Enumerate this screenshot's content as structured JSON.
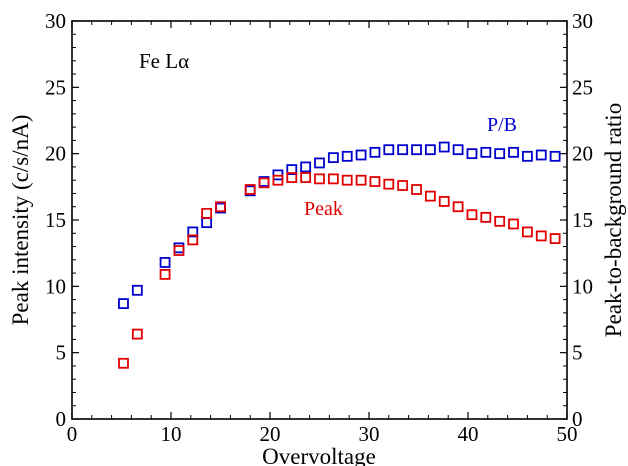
{
  "chart_data": {
    "type": "scatter",
    "annotation": "Fe Lα",
    "xlabel": "Overvoltage",
    "ylabel_left": "Peak intensity (c/s/nA)",
    "ylabel_right": "Peak-to-background ratio",
    "xlim": [
      0,
      50
    ],
    "ylim_left": [
      0,
      30
    ],
    "ylim_right": [
      0,
      30
    ],
    "x_ticks": [
      0,
      10,
      20,
      30,
      40,
      50
    ],
    "y_ticks_left": [
      0,
      5,
      10,
      15,
      20,
      25,
      30
    ],
    "y_ticks_right": [
      0,
      5,
      10,
      15,
      20,
      25,
      30
    ],
    "grid": false,
    "series": [
      {
        "name": "P/B",
        "color": "#0000cc",
        "axis": "right",
        "x": [
          5.2,
          6.6,
          9.4,
          10.8,
          12.2,
          13.6,
          15.0,
          18.0,
          19.4,
          20.8,
          22.2,
          23.6,
          25.0,
          26.4,
          27.8,
          29.2,
          30.6,
          32.0,
          33.4,
          34.8,
          36.2,
          37.6,
          39.0,
          40.4,
          41.8,
          43.2,
          44.6,
          46.0,
          47.4,
          48.8
        ],
        "y": [
          8.7,
          9.7,
          11.8,
          12.9,
          14.1,
          14.8,
          15.9,
          17.2,
          17.9,
          18.4,
          18.8,
          19.0,
          19.3,
          19.7,
          19.8,
          19.9,
          20.1,
          20.3,
          20.3,
          20.3,
          20.3,
          20.5,
          20.3,
          20.0,
          20.1,
          20.0,
          20.1,
          19.8,
          19.9,
          19.8
        ]
      },
      {
        "name": "Peak",
        "color": "#e00000",
        "axis": "left",
        "x": [
          5.2,
          6.6,
          9.4,
          10.8,
          12.2,
          13.6,
          15.0,
          18.0,
          19.4,
          20.8,
          22.2,
          23.6,
          25.0,
          26.4,
          27.8,
          29.2,
          30.6,
          32.0,
          33.4,
          34.8,
          36.2,
          37.6,
          39.0,
          40.4,
          41.8,
          43.2,
          44.6,
          46.0,
          47.4,
          48.8
        ],
        "y": [
          4.2,
          6.4,
          10.9,
          12.7,
          13.5,
          15.5,
          16.0,
          17.3,
          17.8,
          18.0,
          18.2,
          18.2,
          18.1,
          18.1,
          18.0,
          18.0,
          17.9,
          17.7,
          17.6,
          17.3,
          16.8,
          16.4,
          16.0,
          15.4,
          15.2,
          14.9,
          14.7,
          14.1,
          13.8,
          13.6
        ]
      }
    ]
  }
}
